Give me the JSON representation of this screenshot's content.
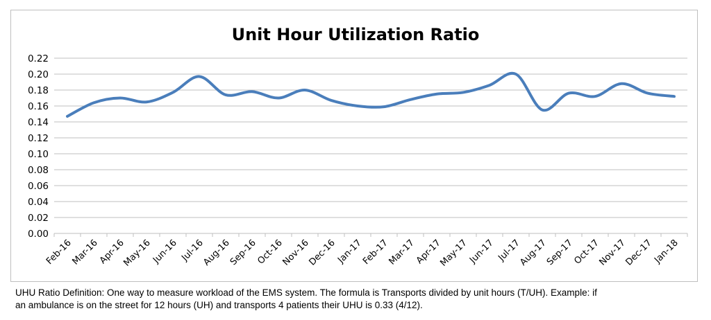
{
  "chart_data": {
    "type": "line",
    "title": "Unit Hour Utilization Ratio",
    "xlabel": "",
    "ylabel": "",
    "ylim": [
      0,
      0.22
    ],
    "yticks": [
      "0.00",
      "0.02",
      "0.04",
      "0.06",
      "0.08",
      "0.10",
      "0.12",
      "0.14",
      "0.16",
      "0.18",
      "0.20",
      "0.22"
    ],
    "grid": true,
    "legend": "none",
    "categories": [
      "Feb-16",
      "Mar-16",
      "Apr-16",
      "May-16",
      "Jun-16",
      "Jul-16",
      "Aug-16",
      "Sep-16",
      "Oct-16",
      "Nov-16",
      "Dec-16",
      "Jan-17",
      "Feb-17",
      "Mar-17",
      "Apr-17",
      "May-17",
      "Jun-17",
      "Jul-17",
      "Aug-17",
      "Sep-17",
      "Oct-17",
      "Nov-17",
      "Dec-17",
      "Jan-18"
    ],
    "series": [
      {
        "values": [
          0.147,
          0.164,
          0.17,
          0.165,
          0.177,
          0.197,
          0.174,
          0.178,
          0.17,
          0.18,
          0.167,
          0.16,
          0.159,
          0.168,
          0.175,
          0.177,
          0.186,
          0.2,
          0.155,
          0.176,
          0.172,
          0.188,
          0.176,
          0.172
        ],
        "color": "#4a7ebb"
      }
    ],
    "gridline_color": "#bfbfbf"
  },
  "footnote": {
    "line1": "UHU Ratio Definition: One way to measure workload of the EMS system. The formula is Transports divided by unit hours (T/UH). Example: if",
    "line2": "an ambulance is on the street for 12 hours (UH) and transports 4 patients their UHU is  0.33 (4/12)."
  }
}
